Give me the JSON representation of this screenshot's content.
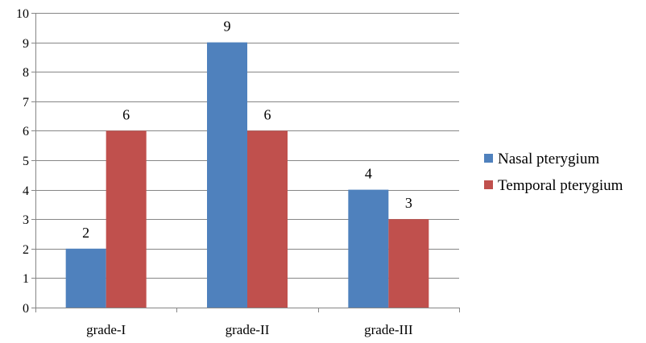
{
  "chart_data": {
    "type": "bar",
    "title": "",
    "xlabel": "",
    "ylabel": "",
    "categories": [
      "grade-I",
      "grade-II",
      "grade-III"
    ],
    "series": [
      {
        "name": "Nasal pterygium",
        "values": [
          2,
          9,
          4
        ],
        "color": "#4F81BD"
      },
      {
        "name": "Temporal pterygium",
        "values": [
          6,
          6,
          3
        ],
        "color": "#C0504D"
      }
    ],
    "ylim": [
      0,
      10
    ],
    "yticks": [
      0,
      1,
      2,
      3,
      4,
      5,
      6,
      7,
      8,
      9,
      10
    ],
    "grid": true,
    "grid_color": "#868686",
    "data_labels": true,
    "legend_position": "right"
  }
}
